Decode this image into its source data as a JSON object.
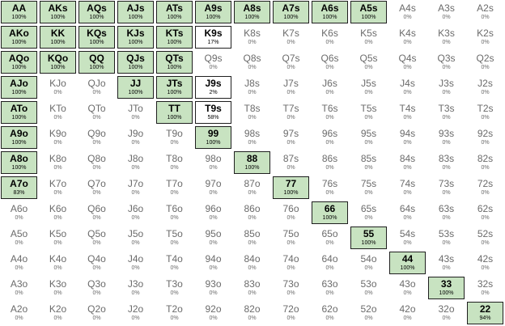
{
  "colors": {
    "selected_fill": "#c8e3c1",
    "selected_border": "#1f1f1f",
    "unselected_text": "#6b6b6b"
  },
  "range": {
    "rows": [
      [
        {
          "hand": "AA",
          "pct": "100%"
        },
        {
          "hand": "AKs",
          "pct": "100%"
        },
        {
          "hand": "AQs",
          "pct": "100%"
        },
        {
          "hand": "AJs",
          "pct": "100%"
        },
        {
          "hand": "ATs",
          "pct": "100%"
        },
        {
          "hand": "A9s",
          "pct": "100%"
        },
        {
          "hand": "A8s",
          "pct": "100%"
        },
        {
          "hand": "A7s",
          "pct": "100%"
        },
        {
          "hand": "A6s",
          "pct": "100%"
        },
        {
          "hand": "A5s",
          "pct": "100%"
        },
        {
          "hand": "A4s",
          "pct": "0%"
        },
        {
          "hand": "A3s",
          "pct": "0%"
        },
        {
          "hand": "A2s",
          "pct": "0%"
        }
      ],
      [
        {
          "hand": "AKo",
          "pct": "100%"
        },
        {
          "hand": "KK",
          "pct": "100%"
        },
        {
          "hand": "KQs",
          "pct": "100%"
        },
        {
          "hand": "KJs",
          "pct": "100%"
        },
        {
          "hand": "KTs",
          "pct": "100%"
        },
        {
          "hand": "K9s",
          "pct": "17%"
        },
        {
          "hand": "K8s",
          "pct": "0%"
        },
        {
          "hand": "K7s",
          "pct": "0%"
        },
        {
          "hand": "K6s",
          "pct": "0%"
        },
        {
          "hand": "K5s",
          "pct": "0%"
        },
        {
          "hand": "K4s",
          "pct": "0%"
        },
        {
          "hand": "K3s",
          "pct": "0%"
        },
        {
          "hand": "K2s",
          "pct": "0%"
        }
      ],
      [
        {
          "hand": "AQo",
          "pct": "100%"
        },
        {
          "hand": "KQo",
          "pct": "100%"
        },
        {
          "hand": "QQ",
          "pct": "100%"
        },
        {
          "hand": "QJs",
          "pct": "100%"
        },
        {
          "hand": "QTs",
          "pct": "100%"
        },
        {
          "hand": "Q9s",
          "pct": "0%"
        },
        {
          "hand": "Q8s",
          "pct": "0%"
        },
        {
          "hand": "Q7s",
          "pct": "0%"
        },
        {
          "hand": "Q6s",
          "pct": "0%"
        },
        {
          "hand": "Q5s",
          "pct": "0%"
        },
        {
          "hand": "Q4s",
          "pct": "0%"
        },
        {
          "hand": "Q3s",
          "pct": "0%"
        },
        {
          "hand": "Q2s",
          "pct": "0%"
        }
      ],
      [
        {
          "hand": "AJo",
          "pct": "100%"
        },
        {
          "hand": "KJo",
          "pct": "0%"
        },
        {
          "hand": "QJo",
          "pct": "0%"
        },
        {
          "hand": "JJ",
          "pct": "100%"
        },
        {
          "hand": "JTs",
          "pct": "100%"
        },
        {
          "hand": "J9s",
          "pct": "2%"
        },
        {
          "hand": "J8s",
          "pct": "0%"
        },
        {
          "hand": "J7s",
          "pct": "0%"
        },
        {
          "hand": "J6s",
          "pct": "0%"
        },
        {
          "hand": "J5s",
          "pct": "0%"
        },
        {
          "hand": "J4s",
          "pct": "0%"
        },
        {
          "hand": "J3s",
          "pct": "0%"
        },
        {
          "hand": "J2s",
          "pct": "0%"
        }
      ],
      [
        {
          "hand": "ATo",
          "pct": "100%"
        },
        {
          "hand": "KTo",
          "pct": "0%"
        },
        {
          "hand": "QTo",
          "pct": "0%"
        },
        {
          "hand": "JTo",
          "pct": "0%"
        },
        {
          "hand": "TT",
          "pct": "100%"
        },
        {
          "hand": "T9s",
          "pct": "58%"
        },
        {
          "hand": "T8s",
          "pct": "0%"
        },
        {
          "hand": "T7s",
          "pct": "0%"
        },
        {
          "hand": "T6s",
          "pct": "0%"
        },
        {
          "hand": "T5s",
          "pct": "0%"
        },
        {
          "hand": "T4s",
          "pct": "0%"
        },
        {
          "hand": "T3s",
          "pct": "0%"
        },
        {
          "hand": "T2s",
          "pct": "0%"
        }
      ],
      [
        {
          "hand": "A9o",
          "pct": "100%"
        },
        {
          "hand": "K9o",
          "pct": "0%"
        },
        {
          "hand": "Q9o",
          "pct": "0%"
        },
        {
          "hand": "J9o",
          "pct": "0%"
        },
        {
          "hand": "T9o",
          "pct": "0%"
        },
        {
          "hand": "99",
          "pct": "100%"
        },
        {
          "hand": "98s",
          "pct": "0%"
        },
        {
          "hand": "97s",
          "pct": "0%"
        },
        {
          "hand": "96s",
          "pct": "0%"
        },
        {
          "hand": "95s",
          "pct": "0%"
        },
        {
          "hand": "94s",
          "pct": "0%"
        },
        {
          "hand": "93s",
          "pct": "0%"
        },
        {
          "hand": "92s",
          "pct": "0%"
        }
      ],
      [
        {
          "hand": "A8o",
          "pct": "100%"
        },
        {
          "hand": "K8o",
          "pct": "0%"
        },
        {
          "hand": "Q8o",
          "pct": "0%"
        },
        {
          "hand": "J8o",
          "pct": "0%"
        },
        {
          "hand": "T8o",
          "pct": "0%"
        },
        {
          "hand": "98o",
          "pct": "0%"
        },
        {
          "hand": "88",
          "pct": "100%"
        },
        {
          "hand": "87s",
          "pct": "0%"
        },
        {
          "hand": "86s",
          "pct": "0%"
        },
        {
          "hand": "85s",
          "pct": "0%"
        },
        {
          "hand": "84s",
          "pct": "0%"
        },
        {
          "hand": "83s",
          "pct": "0%"
        },
        {
          "hand": "82s",
          "pct": "0%"
        }
      ],
      [
        {
          "hand": "A7o",
          "pct": "83%"
        },
        {
          "hand": "K7o",
          "pct": "0%"
        },
        {
          "hand": "Q7o",
          "pct": "0%"
        },
        {
          "hand": "J7o",
          "pct": "0%"
        },
        {
          "hand": "T7o",
          "pct": "0%"
        },
        {
          "hand": "97o",
          "pct": "0%"
        },
        {
          "hand": "87o",
          "pct": "0%"
        },
        {
          "hand": "77",
          "pct": "100%"
        },
        {
          "hand": "76s",
          "pct": "0%"
        },
        {
          "hand": "75s",
          "pct": "0%"
        },
        {
          "hand": "74s",
          "pct": "0%"
        },
        {
          "hand": "73s",
          "pct": "0%"
        },
        {
          "hand": "72s",
          "pct": "0%"
        }
      ],
      [
        {
          "hand": "A6o",
          "pct": "0%"
        },
        {
          "hand": "K6o",
          "pct": "0%"
        },
        {
          "hand": "Q6o",
          "pct": "0%"
        },
        {
          "hand": "J6o",
          "pct": "0%"
        },
        {
          "hand": "T6o",
          "pct": "0%"
        },
        {
          "hand": "96o",
          "pct": "0%"
        },
        {
          "hand": "86o",
          "pct": "0%"
        },
        {
          "hand": "76o",
          "pct": "0%"
        },
        {
          "hand": "66",
          "pct": "100%"
        },
        {
          "hand": "65s",
          "pct": "0%"
        },
        {
          "hand": "64s",
          "pct": "0%"
        },
        {
          "hand": "63s",
          "pct": "0%"
        },
        {
          "hand": "62s",
          "pct": "0%"
        }
      ],
      [
        {
          "hand": "A5o",
          "pct": "0%"
        },
        {
          "hand": "K5o",
          "pct": "0%"
        },
        {
          "hand": "Q5o",
          "pct": "0%"
        },
        {
          "hand": "J5o",
          "pct": "0%"
        },
        {
          "hand": "T5o",
          "pct": "0%"
        },
        {
          "hand": "95o",
          "pct": "0%"
        },
        {
          "hand": "85o",
          "pct": "0%"
        },
        {
          "hand": "75o",
          "pct": "0%"
        },
        {
          "hand": "65o",
          "pct": "0%"
        },
        {
          "hand": "55",
          "pct": "100%"
        },
        {
          "hand": "54s",
          "pct": "0%"
        },
        {
          "hand": "53s",
          "pct": "0%"
        },
        {
          "hand": "52s",
          "pct": "0%"
        }
      ],
      [
        {
          "hand": "A4o",
          "pct": "0%"
        },
        {
          "hand": "K4o",
          "pct": "0%"
        },
        {
          "hand": "Q4o",
          "pct": "0%"
        },
        {
          "hand": "J4o",
          "pct": "0%"
        },
        {
          "hand": "T4o",
          "pct": "0%"
        },
        {
          "hand": "94o",
          "pct": "0%"
        },
        {
          "hand": "84o",
          "pct": "0%"
        },
        {
          "hand": "74o",
          "pct": "0%"
        },
        {
          "hand": "64o",
          "pct": "0%"
        },
        {
          "hand": "54o",
          "pct": "0%"
        },
        {
          "hand": "44",
          "pct": "100%"
        },
        {
          "hand": "43s",
          "pct": "0%"
        },
        {
          "hand": "42s",
          "pct": "0%"
        }
      ],
      [
        {
          "hand": "A3o",
          "pct": "0%"
        },
        {
          "hand": "K3o",
          "pct": "0%"
        },
        {
          "hand": "Q3o",
          "pct": "0%"
        },
        {
          "hand": "J3o",
          "pct": "0%"
        },
        {
          "hand": "T3o",
          "pct": "0%"
        },
        {
          "hand": "93o",
          "pct": "0%"
        },
        {
          "hand": "83o",
          "pct": "0%"
        },
        {
          "hand": "73o",
          "pct": "0%"
        },
        {
          "hand": "63o",
          "pct": "0%"
        },
        {
          "hand": "53o",
          "pct": "0%"
        },
        {
          "hand": "43o",
          "pct": "0%"
        },
        {
          "hand": "33",
          "pct": "100%"
        },
        {
          "hand": "32s",
          "pct": "0%"
        }
      ],
      [
        {
          "hand": "A2o",
          "pct": "0%"
        },
        {
          "hand": "K2o",
          "pct": "0%"
        },
        {
          "hand": "Q2o",
          "pct": "0%"
        },
        {
          "hand": "J2o",
          "pct": "0%"
        },
        {
          "hand": "T2o",
          "pct": "0%"
        },
        {
          "hand": "92o",
          "pct": "0%"
        },
        {
          "hand": "82o",
          "pct": "0%"
        },
        {
          "hand": "72o",
          "pct": "0%"
        },
        {
          "hand": "62o",
          "pct": "0%"
        },
        {
          "hand": "52o",
          "pct": "0%"
        },
        {
          "hand": "42o",
          "pct": "0%"
        },
        {
          "hand": "32o",
          "pct": "0%"
        },
        {
          "hand": "22",
          "pct": "94%"
        }
      ]
    ]
  }
}
